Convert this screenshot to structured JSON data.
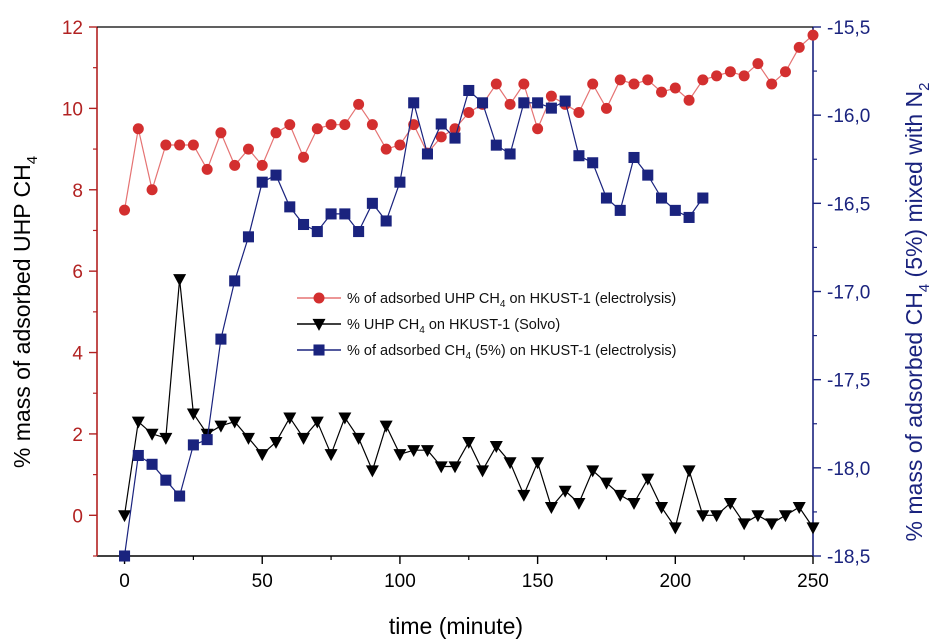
{
  "chart_data": {
    "type": "line",
    "xlabel": "time (minute)",
    "ylabel_left": {
      "main": "% mass of adsorbed UHP CH",
      "sub": "4"
    },
    "ylabel_right": {
      "main": "% mass of adsorbed CH",
      "sub": "4",
      "mid": " (5%) mixed with N",
      "sub2": "2"
    },
    "xlim": [
      -10,
      250
    ],
    "ylim_left": [
      -1,
      12
    ],
    "ylim_right": [
      -18.5,
      -15.5
    ],
    "x_ticks": [
      0,
      50,
      100,
      150,
      200,
      250
    ],
    "x_tick_labels": [
      "0",
      "50",
      "100",
      "150",
      "200",
      "250"
    ],
    "y_left_ticks": [
      0,
      2,
      4,
      6,
      8,
      10,
      12
    ],
    "y_left_tick_labels": [
      "0",
      "2",
      "4",
      "6",
      "8",
      "10",
      "12"
    ],
    "y_right_ticks": [
      -18.5,
      -18.0,
      -17.5,
      -17.0,
      -16.5,
      -16.0,
      -15.5
    ],
    "y_right_tick_labels": [
      "-18,5",
      "-18,0",
      "-17,5",
      "-17,0",
      "-16,5",
      "-16,0",
      "-15,5"
    ],
    "grid": false,
    "legend_position": "center",
    "colors": {
      "left_axis": "#b22222",
      "right_axis": "#1a237e",
      "bottom_axis": "#000000"
    },
    "series": [
      {
        "legend": {
          "pre": "% of adsorbed UHP CH",
          "sub": "4",
          "post": " on HKUST-1 (electrolysis)"
        },
        "axis": "left",
        "marker": "circle",
        "color": "#d32f2f",
        "line_color": "#e57373",
        "x": [
          0,
          5,
          10,
          15,
          20,
          25,
          30,
          35,
          40,
          45,
          50,
          55,
          60,
          65,
          70,
          75,
          80,
          85,
          90,
          95,
          100,
          105,
          110,
          115,
          120,
          125,
          130,
          135,
          140,
          145,
          150,
          155,
          160,
          165,
          170,
          175,
          180,
          185,
          190,
          195,
          200,
          205,
          210,
          215,
          220,
          225,
          230,
          235,
          240,
          245,
          250
        ],
        "y": [
          7.5,
          9.5,
          8.0,
          9.1,
          9.1,
          9.1,
          8.5,
          9.4,
          8.6,
          9.0,
          8.6,
          9.4,
          9.6,
          8.8,
          9.5,
          9.6,
          9.6,
          10.1,
          9.6,
          9.0,
          9.1,
          9.6,
          8.9,
          9.3,
          9.5,
          9.9,
          10.1,
          10.6,
          10.1,
          10.6,
          9.5,
          10.3,
          10.1,
          9.9,
          10.6,
          10.0,
          10.7,
          10.6,
          10.7,
          10.4,
          10.5,
          10.2,
          10.7,
          10.8,
          10.9,
          10.8,
          11.1,
          10.6,
          10.9,
          11.5,
          11.8
        ]
      },
      {
        "legend": {
          "pre": "% UHP CH",
          "sub": "4",
          "post": " on HKUST-1 (Solvo)"
        },
        "axis": "left",
        "marker": "triangle-down",
        "color": "#000000",
        "line_color": "#000000",
        "x": [
          0,
          5,
          10,
          15,
          20,
          25,
          30,
          35,
          40,
          45,
          50,
          55,
          60,
          65,
          70,
          75,
          80,
          85,
          90,
          95,
          100,
          105,
          110,
          115,
          120,
          125,
          130,
          135,
          140,
          145,
          150,
          155,
          160,
          165,
          170,
          175,
          180,
          185,
          190,
          195,
          200,
          205,
          210,
          215,
          220,
          225,
          230,
          235,
          240,
          245,
          250
        ],
        "y": [
          0.0,
          2.3,
          2.0,
          1.9,
          5.8,
          2.5,
          2.0,
          2.2,
          2.3,
          1.9,
          1.5,
          1.8,
          2.4,
          1.9,
          2.3,
          1.5,
          2.4,
          1.9,
          1.1,
          2.2,
          1.5,
          1.6,
          1.6,
          1.2,
          1.2,
          1.8,
          1.1,
          1.7,
          1.3,
          0.5,
          1.3,
          0.2,
          0.6,
          0.3,
          1.1,
          0.8,
          0.5,
          0.3,
          0.9,
          0.2,
          -0.3,
          1.1,
          0.0,
          0.0,
          0.3,
          -0.2,
          0.0,
          -0.2,
          0.0,
          0.2,
          -0.3
        ]
      },
      {
        "legend": {
          "pre": "% of adsorbed CH",
          "sub": "4",
          "post": " (5%) on HKUST-1 (electrolysis)"
        },
        "axis": "right",
        "marker": "square",
        "color": "#1a237e",
        "line_color": "#1a237e",
        "x": [
          0,
          5,
          10,
          15,
          20,
          25,
          30,
          35,
          40,
          45,
          50,
          55,
          60,
          65,
          70,
          75,
          80,
          85,
          90,
          95,
          100,
          105,
          110,
          115,
          120,
          125,
          130,
          135,
          140,
          145,
          150,
          155,
          160,
          165,
          170,
          175,
          180,
          185,
          190,
          195,
          200,
          205,
          210
        ],
        "y": [
          -18.5,
          -17.93,
          -17.98,
          -18.07,
          -18.16,
          -17.87,
          -17.84,
          -17.27,
          -16.94,
          -16.69,
          -16.38,
          -16.34,
          -16.52,
          -16.62,
          -16.66,
          -16.56,
          -16.56,
          -16.66,
          -16.5,
          -16.6,
          -16.38,
          -15.93,
          -16.22,
          -16.05,
          -16.13,
          -15.86,
          -15.93,
          -16.17,
          -16.22,
          -15.93,
          -15.93,
          -15.96,
          -15.92,
          -16.23,
          -16.27,
          -16.47,
          -16.54,
          -16.24,
          -16.34,
          -16.47,
          -16.54,
          -16.58,
          -16.47
        ]
      }
    ]
  }
}
